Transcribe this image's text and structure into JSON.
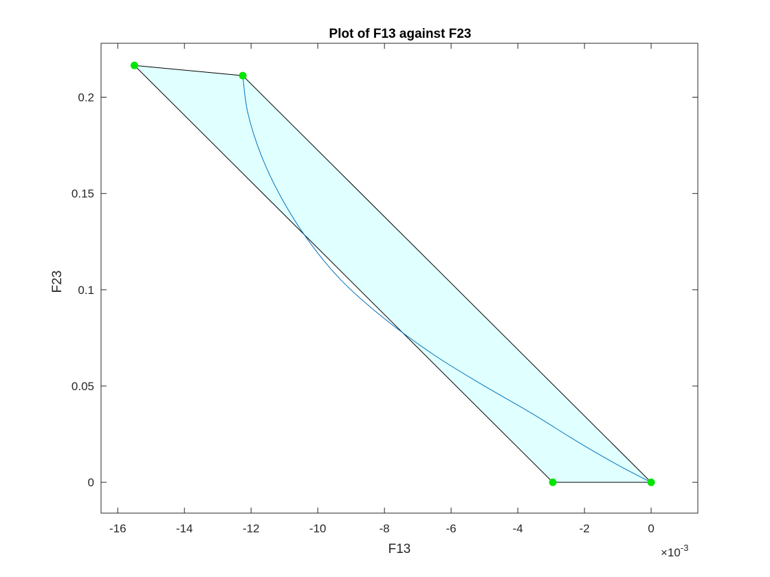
{
  "chart_data": {
    "type": "line",
    "title": "Plot of F13 against F23",
    "xlabel": "F13",
    "ylabel": "F23",
    "x_exponent": {
      "base": "10",
      "power": "-3",
      "multiplier_symbol": "×"
    },
    "xlim": [
      -16.5,
      1.4
    ],
    "ylim": [
      -0.016,
      0.228
    ],
    "xticks": [
      -16,
      -14,
      -12,
      -10,
      -8,
      -6,
      -4,
      -2,
      0
    ],
    "xtick_labels": [
      "-16",
      "-14",
      "-12",
      "-10",
      "-8",
      "-6",
      "-4",
      "-2",
      "0"
    ],
    "yticks": [
      0,
      0.05,
      0.1,
      0.15,
      0.2
    ],
    "ytick_labels": [
      "0",
      "0.05",
      "0.1",
      "0.15",
      "0.2"
    ],
    "grid": false,
    "polygon": {
      "fill_color": "#e0ffff",
      "edge_color": "#000000",
      "vertices": [
        {
          "x": 0,
          "y": 0
        },
        {
          "x": -2.95,
          "y": 0
        },
        {
          "x": -15.5,
          "y": 0.2165
        },
        {
          "x": -12.25,
          "y": 0.2112
        }
      ]
    },
    "markers": {
      "color": "#00e600",
      "points": [
        {
          "x": -15.5,
          "y": 0.2165
        },
        {
          "x": -12.25,
          "y": 0.2112
        },
        {
          "x": -2.95,
          "y": 0
        },
        {
          "x": 0,
          "y": 0
        }
      ]
    },
    "series": [
      {
        "color": "#0072bd",
        "x": [
          -12.25,
          -12.1,
          -11.7,
          -11.1,
          -10.3,
          -9.3,
          -8.0,
          -6.5,
          -5.0,
          -3.6,
          -2.2,
          -1.0,
          0
        ],
        "y": [
          0.2112,
          0.192,
          0.17,
          0.148,
          0.126,
          0.105,
          0.085,
          0.066,
          0.05,
          0.036,
          0.021,
          0.009,
          0
        ]
      }
    ]
  }
}
